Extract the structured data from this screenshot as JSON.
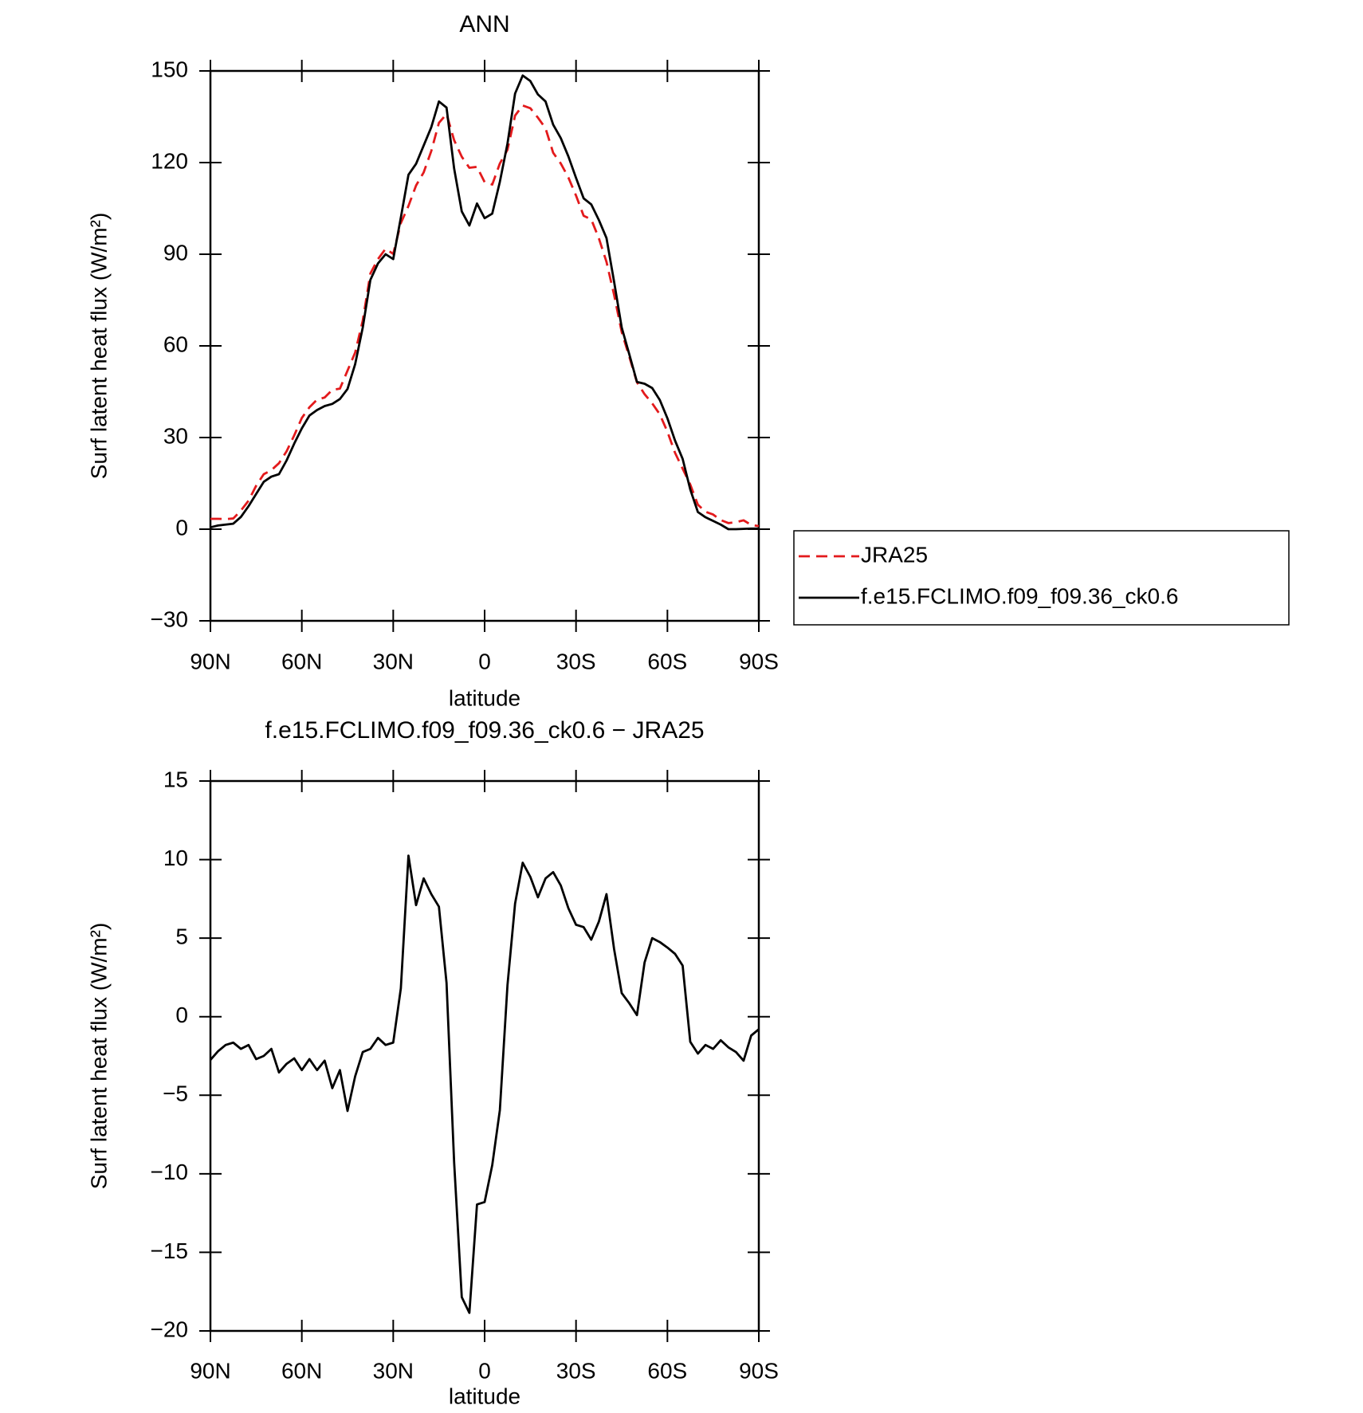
{
  "chart_data": [
    {
      "type": "line",
      "title": "ANN",
      "xlabel": "latitude",
      "ylabel": "Surf latent heat flux (W/m²)",
      "x": [
        90,
        87.5,
        85,
        82.5,
        80,
        77.5,
        75,
        72.5,
        70,
        67.5,
        65,
        62.5,
        60,
        57.5,
        55,
        52.5,
        50,
        47.5,
        45,
        42.5,
        40,
        37.5,
        35,
        32.5,
        30,
        27.5,
        25,
        22.5,
        20,
        17.5,
        15,
        12.5,
        10,
        7.5,
        5,
        2.5,
        0,
        -2.5,
        -5,
        -7.5,
        -10,
        -12.5,
        -15,
        -17.5,
        -20,
        -22.5,
        -25,
        -27.5,
        -30,
        -32.5,
        -35,
        -37.5,
        -40,
        -42.5,
        -45,
        -47.5,
        -50,
        -52.5,
        -55,
        -57.5,
        -60,
        -62.5,
        -65,
        -67.5,
        -70,
        -72.5,
        -75,
        -77.5,
        -80,
        -82.5,
        -85,
        -87.5,
        -90
      ],
      "xlim": [
        90,
        -90
      ],
      "xticks": [
        {
          "value": 90,
          "label": "90N"
        },
        {
          "value": 60,
          "label": "60N"
        },
        {
          "value": 30,
          "label": "30N"
        },
        0,
        {
          "value": -30,
          "label": "30S"
        },
        {
          "value": -60,
          "label": "60S"
        },
        {
          "value": -90,
          "label": "90S"
        }
      ],
      "ylim": [
        -30,
        150
      ],
      "yticks": [
        {
          "value": -30,
          "label": "−30"
        },
        0,
        30,
        60,
        90,
        120,
        150
      ],
      "legend": "right",
      "series": [
        {
          "name": "JRA25",
          "color": "#e31a1c",
          "dashed": true,
          "values": [
            3.4,
            3.4,
            3.3,
            3.5,
            6.1,
            9.3,
            14.2,
            18,
            19.3,
            21.6,
            25.5,
            30.7,
            36.4,
            39.9,
            42.4,
            43.1,
            45.6,
            46,
            51.9,
            57.8,
            68.3,
            83.7,
            88.4,
            91.8,
            90.1,
            100.2,
            105.8,
            112.5,
            116.8,
            123.8,
            133,
            135.9,
            127.3,
            121.9,
            118.3,
            118.6,
            113.6,
            112.8,
            119.7,
            124.2,
            135.4,
            138.7,
            137.8,
            134.7,
            131.2,
            123.2,
            119.7,
            115.1,
            109.2,
            102.6,
            101.4,
            95.2,
            87.5,
            76.7,
            64.5,
            56.4,
            48.1,
            44.2,
            41.2,
            37.6,
            31.9,
            25,
            19.8,
            14.6,
            8,
            5.7,
            4.8,
            3,
            2,
            2.3,
            2.9,
            1.4,
            1
          ]
        },
        {
          "name": "f.e15.FCLIMO.f09_f09.36_ck0.6",
          "color": "#000000",
          "dashed": false,
          "values": [
            0.6,
            1.2,
            1.5,
            1.8,
            4,
            7.5,
            11.5,
            15.5,
            17.2,
            18,
            22.5,
            28,
            33,
            37.2,
            39,
            40.3,
            41,
            42.6,
            45.9,
            54,
            66,
            81.6,
            87,
            90,
            88.4,
            102,
            116,
            119.6,
            125.6,
            131.6,
            140,
            138,
            118,
            104,
            99.4,
            106.6,
            101.8,
            103.3,
            113.7,
            126.2,
            142.6,
            148.5,
            146.7,
            142.3,
            140,
            132.4,
            128,
            122,
            115,
            108.3,
            106.3,
            101.2,
            95.3,
            81,
            66,
            57.2,
            48.2,
            47.6,
            46.2,
            42.3,
            36.3,
            29,
            23,
            13,
            5.6,
            3.9,
            2.7,
            1.5,
            0,
            0,
            0.1,
            0.2,
            0.2
          ]
        }
      ]
    },
    {
      "type": "line",
      "title": "f.e15.FCLIMO.f09_f09.36_ck0.6 − JRA25",
      "xlabel": "latitude",
      "ylabel": "Surf latent heat flux (W/m²)",
      "x": [
        90,
        87.5,
        85,
        82.5,
        80,
        77.5,
        75,
        72.5,
        70,
        67.5,
        65,
        62.5,
        60,
        57.5,
        55,
        52.5,
        50,
        47.5,
        45,
        42.5,
        40,
        37.5,
        35,
        32.5,
        30,
        27.5,
        25,
        22.5,
        20,
        17.5,
        15,
        12.5,
        10,
        7.5,
        5,
        2.5,
        0,
        -2.5,
        -5,
        -7.5,
        -10,
        -12.5,
        -15,
        -17.5,
        -20,
        -22.5,
        -25,
        -27.5,
        -30,
        -32.5,
        -35,
        -37.5,
        -40,
        -42.5,
        -45,
        -47.5,
        -50,
        -52.5,
        -55,
        -57.5,
        -60,
        -62.5,
        -65,
        -67.5,
        -70,
        -72.5,
        -75,
        -77.5,
        -80,
        -82.5,
        -85,
        -87.5,
        -90
      ],
      "xlim": [
        90,
        -90
      ],
      "xticks": [
        {
          "value": 90,
          "label": "90N"
        },
        {
          "value": 60,
          "label": "60N"
        },
        {
          "value": 30,
          "label": "30N"
        },
        0,
        {
          "value": -30,
          "label": "30S"
        },
        {
          "value": -60,
          "label": "60S"
        },
        {
          "value": -90,
          "label": "90S"
        }
      ],
      "ylim": [
        -20,
        15
      ],
      "yticks": [
        {
          "value": -20,
          "label": "−20"
        },
        {
          "value": -15,
          "label": "−15"
        },
        {
          "value": -10,
          "label": "−10"
        },
        {
          "value": -5,
          "label": "−5"
        },
        0,
        5,
        10,
        15
      ],
      "color": "#000000",
      "values": [
        -2.75,
        -2.2,
        -1.8,
        -1.65,
        -2.05,
        -1.8,
        -2.7,
        -2.5,
        -2.05,
        -3.55,
        -3,
        -2.65,
        -3.4,
        -2.7,
        -3.4,
        -2.8,
        -4.55,
        -3.4,
        -6,
        -3.8,
        -2.25,
        -2.05,
        -1.35,
        -1.8,
        -1.65,
        1.8,
        10.25,
        7.1,
        8.8,
        7.8,
        7,
        2.15,
        -9.3,
        -17.85,
        -18.85,
        -11.95,
        -11.8,
        -9.45,
        -5.95,
        2,
        7.2,
        9.8,
        8.9,
        7.6,
        8.8,
        9.2,
        8.35,
        6.9,
        5.85,
        5.7,
        4.9,
        6.05,
        7.8,
        4.3,
        1.5,
        0.85,
        0.1,
        3.45,
        5,
        4.75,
        4.4,
        4,
        3.25,
        -1.6,
        -2.35,
        -1.8,
        -2.05,
        -1.5,
        -1.95,
        -2.25,
        -2.8,
        -1.2,
        -0.8
      ]
    }
  ]
}
